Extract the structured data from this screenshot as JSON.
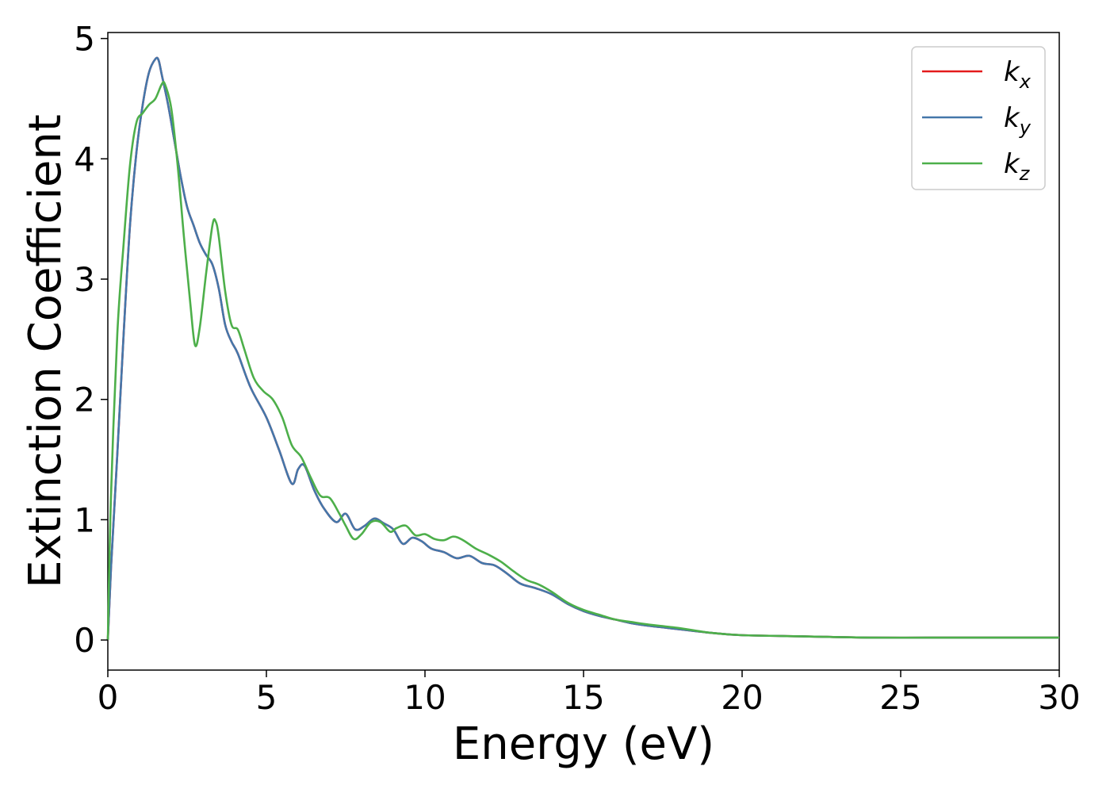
{
  "chart_data": {
    "type": "line",
    "title": "",
    "xlabel": "Energy (eV)",
    "ylabel": "Extinction Coefficient",
    "xlim": [
      0,
      30
    ],
    "ylim": [
      -0.25,
      5.05
    ],
    "xticks": [
      0,
      5,
      10,
      15,
      20,
      25,
      30
    ],
    "yticks": [
      0,
      1,
      2,
      3,
      4,
      5
    ],
    "grid": false,
    "legend_placement": "top-right",
    "series": [
      {
        "name": "k",
        "subscript": "x",
        "color": "#e41a1c",
        "x": [
          0,
          0.1,
          0.3,
          0.5,
          0.7,
          0.9,
          1.1,
          1.3,
          1.5,
          1.6,
          1.7,
          1.9,
          2.1,
          2.3,
          2.5,
          2.7,
          2.9,
          3.1,
          3.3,
          3.5,
          3.7,
          3.9,
          4.1,
          4.5,
          5.0,
          5.4,
          5.8,
          6.0,
          6.2,
          6.5,
          6.8,
          7.2,
          7.5,
          7.8,
          8.1,
          8.4,
          8.7,
          9.0,
          9.3,
          9.6,
          9.9,
          10.2,
          10.6,
          11.0,
          11.4,
          11.8,
          12.2,
          12.6,
          13.0,
          13.5,
          14.0,
          14.5,
          15.0,
          15.5,
          16.0,
          16.5,
          17.0,
          18.0,
          19.0,
          20.0,
          22.0,
          24.0,
          26.0,
          28.0,
          30.0
        ],
        "y": [
          0,
          0.6,
          1.55,
          2.55,
          3.45,
          4.05,
          4.45,
          4.72,
          4.83,
          4.82,
          4.7,
          4.45,
          4.15,
          3.85,
          3.6,
          3.45,
          3.3,
          3.2,
          3.12,
          2.92,
          2.62,
          2.48,
          2.38,
          2.1,
          1.85,
          1.58,
          1.3,
          1.42,
          1.45,
          1.25,
          1.1,
          0.98,
          1.05,
          0.92,
          0.95,
          1.01,
          0.97,
          0.92,
          0.8,
          0.85,
          0.82,
          0.76,
          0.73,
          0.68,
          0.7,
          0.64,
          0.62,
          0.55,
          0.47,
          0.43,
          0.38,
          0.3,
          0.24,
          0.2,
          0.17,
          0.14,
          0.12,
          0.09,
          0.06,
          0.04,
          0.03,
          0.02,
          0.02,
          0.02,
          0.02
        ]
      },
      {
        "name": "k",
        "subscript": "y",
        "color": "#4477aa",
        "x": [
          0,
          0.1,
          0.3,
          0.5,
          0.7,
          0.9,
          1.1,
          1.3,
          1.5,
          1.6,
          1.7,
          1.9,
          2.1,
          2.3,
          2.5,
          2.7,
          2.9,
          3.1,
          3.3,
          3.5,
          3.7,
          3.9,
          4.1,
          4.5,
          5.0,
          5.4,
          5.8,
          6.0,
          6.2,
          6.5,
          6.8,
          7.2,
          7.5,
          7.8,
          8.1,
          8.4,
          8.7,
          9.0,
          9.3,
          9.6,
          9.9,
          10.2,
          10.6,
          11.0,
          11.4,
          11.8,
          12.2,
          12.6,
          13.0,
          13.5,
          14.0,
          14.5,
          15.0,
          15.5,
          16.0,
          16.5,
          17.0,
          18.0,
          19.0,
          20.0,
          22.0,
          24.0,
          26.0,
          28.0,
          30.0
        ],
        "y": [
          0,
          0.6,
          1.55,
          2.55,
          3.45,
          4.05,
          4.45,
          4.72,
          4.83,
          4.82,
          4.7,
          4.45,
          4.15,
          3.85,
          3.6,
          3.45,
          3.3,
          3.2,
          3.12,
          2.92,
          2.62,
          2.48,
          2.38,
          2.1,
          1.85,
          1.58,
          1.3,
          1.42,
          1.45,
          1.25,
          1.1,
          0.98,
          1.05,
          0.92,
          0.95,
          1.01,
          0.97,
          0.92,
          0.8,
          0.85,
          0.82,
          0.76,
          0.73,
          0.68,
          0.7,
          0.64,
          0.62,
          0.55,
          0.47,
          0.43,
          0.38,
          0.3,
          0.24,
          0.2,
          0.17,
          0.14,
          0.12,
          0.09,
          0.06,
          0.04,
          0.03,
          0.02,
          0.02,
          0.02,
          0.02
        ]
      },
      {
        "name": "k",
        "subscript": "z",
        "color": "#4daf4a",
        "x": [
          0,
          0.1,
          0.3,
          0.5,
          0.7,
          0.9,
          1.1,
          1.3,
          1.5,
          1.7,
          1.8,
          2.0,
          2.2,
          2.4,
          2.6,
          2.75,
          2.9,
          3.1,
          3.3,
          3.4,
          3.5,
          3.7,
          3.9,
          4.1,
          4.3,
          4.6,
          4.9,
          5.2,
          5.5,
          5.8,
          6.1,
          6.4,
          6.7,
          7.0,
          7.3,
          7.5,
          7.75,
          8.0,
          8.3,
          8.6,
          8.9,
          9.1,
          9.4,
          9.7,
          10.0,
          10.3,
          10.6,
          10.9,
          11.2,
          11.6,
          12.0,
          12.4,
          12.8,
          13.2,
          13.6,
          14.0,
          14.5,
          15.0,
          15.5,
          16.0,
          16.5,
          17.0,
          18.0,
          19.0,
          20.0,
          22.0,
          24.0,
          26.0,
          28.0,
          30.0
        ],
        "y": [
          0,
          1.2,
          2.55,
          3.3,
          3.95,
          4.3,
          4.38,
          4.45,
          4.5,
          4.62,
          4.62,
          4.42,
          3.95,
          3.35,
          2.8,
          2.45,
          2.6,
          3.05,
          3.45,
          3.48,
          3.35,
          2.9,
          2.62,
          2.58,
          2.42,
          2.18,
          2.07,
          2.0,
          1.85,
          1.62,
          1.52,
          1.35,
          1.2,
          1.18,
          1.05,
          0.95,
          0.84,
          0.88,
          0.98,
          0.98,
          0.9,
          0.93,
          0.95,
          0.87,
          0.88,
          0.84,
          0.83,
          0.86,
          0.83,
          0.76,
          0.71,
          0.65,
          0.57,
          0.5,
          0.46,
          0.4,
          0.31,
          0.25,
          0.21,
          0.17,
          0.15,
          0.13,
          0.1,
          0.06,
          0.04,
          0.03,
          0.02,
          0.02,
          0.02,
          0.02
        ]
      }
    ]
  }
}
